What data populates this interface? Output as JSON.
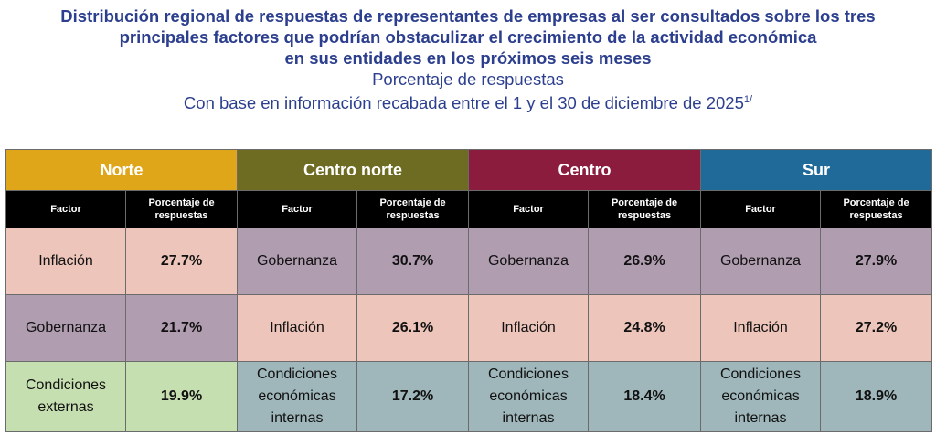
{
  "title": {
    "line1": "Distribución regional de respuestas de representantes de empresas al ser consultados sobre los tres",
    "line2": "principales factores que podrían obstaculizar el crecimiento de la actividad económica",
    "line3": "en sus entidades en los próximos seis meses",
    "subtitle": "Porcentaje de respuestas",
    "base": "Con base en información recabada entre el 1 y el 30 de diciembre de 2025",
    "footnote": "1/"
  },
  "columns": {
    "factor": "Factor",
    "pct": "Porcentaje de respuestas"
  },
  "colors": {
    "Norte": "#e0a619",
    "Centro norte": "#6e6b23",
    "Centro": "#8b1c3e",
    "Sur": "#1f6a98",
    "inflacion": "#eec5ba",
    "gobernanza": "#b09db0",
    "externas": "#c6dfb1",
    "internas": "#9fb7bb"
  },
  "regions": [
    {
      "name": "Norte",
      "rows": [
        {
          "factor": "Inflación",
          "pct": "27.7%",
          "c": "inflacion"
        },
        {
          "factor": "Gobernanza",
          "pct": "21.7%",
          "c": "gobernanza"
        },
        {
          "factor": "Condiciones externas",
          "pct": "19.9%",
          "c": "externas"
        }
      ]
    },
    {
      "name": "Centro norte",
      "rows": [
        {
          "factor": "Gobernanza",
          "pct": "30.7%",
          "c": "gobernanza"
        },
        {
          "factor": "Inflación",
          "pct": "26.1%",
          "c": "inflacion"
        },
        {
          "factor": "Condiciones económicas internas",
          "pct": "17.2%",
          "c": "internas"
        }
      ]
    },
    {
      "name": "Centro",
      "rows": [
        {
          "factor": "Gobernanza",
          "pct": "26.9%",
          "c": "gobernanza"
        },
        {
          "factor": "Inflación",
          "pct": "24.8%",
          "c": "inflacion"
        },
        {
          "factor": "Condiciones económicas internas",
          "pct": "18.4%",
          "c": "internas"
        }
      ]
    },
    {
      "name": "Sur",
      "rows": [
        {
          "factor": "Gobernanza",
          "pct": "27.9%",
          "c": "gobernanza"
        },
        {
          "factor": "Inflación",
          "pct": "27.2%",
          "c": "inflacion"
        },
        {
          "factor": "Condiciones económicas internas",
          "pct": "18.9%",
          "c": "internas"
        }
      ]
    }
  ]
}
